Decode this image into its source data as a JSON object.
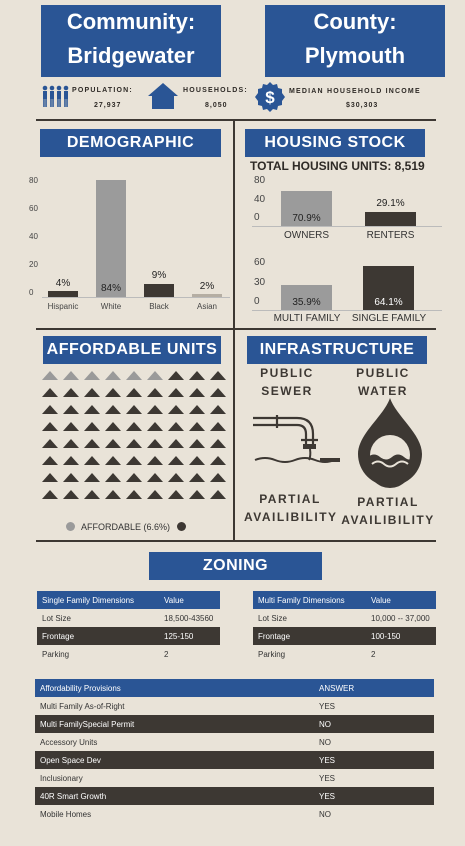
{
  "header": {
    "community_label": "Community:",
    "community_name": "Bridgewater",
    "county_label": "County:",
    "county_name": "Plymouth"
  },
  "stats": {
    "population_label": "POPULATION:",
    "population_value": "27,937",
    "households_label": "HOUSEHOLDS:",
    "households_value": "8,050",
    "income_label": "MEDIAN HOUSEHOLD INCOME",
    "income_value": "$30,303"
  },
  "demographic": {
    "title": "DEMOGRAPHIC",
    "chart_data": {
      "type": "bar",
      "categories": [
        "Hispanic",
        "White",
        "Black",
        "Asian"
      ],
      "values": [
        4,
        84,
        9,
        2
      ],
      "labels": [
        "4%",
        "84%",
        "9%",
        "2%"
      ],
      "yticks": [
        "80",
        "60",
        "40",
        "20",
        "0"
      ],
      "ylim": [
        0,
        90
      ]
    }
  },
  "housing": {
    "title": "HOUSING STOCK",
    "total_label": "TOTAL HOUSING UNITS: 8,519",
    "tenure": {
      "type": "bar",
      "categories": [
        "OWNERS",
        "RENTERS"
      ],
      "values": [
        70.9,
        29.1
      ],
      "labels": [
        "70.9%",
        "29.1%"
      ],
      "yticks": [
        "80",
        "40",
        "0"
      ],
      "ylim": [
        0,
        80
      ]
    },
    "structure": {
      "type": "bar",
      "categories": [
        "MULTI FAMILY",
        "SINGLE FAMILY"
      ],
      "values": [
        35.9,
        64.1
      ],
      "labels": [
        "35.9%",
        "64.1%"
      ],
      "yticks": [
        "60",
        "30",
        "0"
      ],
      "ylim": [
        0,
        65
      ]
    }
  },
  "affordable": {
    "title": "AFFORDABLE UNITS",
    "legend": "AFFORDABLE (6.6%)",
    "affordable_color": "#9a9a9a",
    "other_color": "#3d3833"
  },
  "infrastructure": {
    "title": "INFRASTRUCTURE",
    "sewer_line1": "PUBLIC",
    "sewer_line2": "SEWER",
    "water_line1": "PUBLIC",
    "water_line2": "WATER",
    "sewer_status1": "PARTIAL",
    "sewer_status2": "AVAILIBILITY",
    "water_status1": "PARTIAL",
    "water_status2": "AVAILIBILITY"
  },
  "zoning": {
    "title": "ZONING",
    "single": {
      "headers": [
        "Single Family Dimensions",
        "Value"
      ],
      "rows": [
        [
          "Lot Size",
          "18,500-43560"
        ],
        [
          "Frontage",
          "125-150"
        ],
        [
          "Parking",
          "2"
        ]
      ]
    },
    "multi": {
      "headers": [
        "Multi Family Dimensions",
        "Value"
      ],
      "rows": [
        [
          "Lot Size",
          "10,000 -- 37,000"
        ],
        [
          "Frontage",
          "100-150"
        ],
        [
          "Parking",
          "2"
        ]
      ]
    },
    "provisions": {
      "headers": [
        "Affordability Provisions",
        "ANSWER"
      ],
      "rows": [
        [
          "Multi Family As-of-Right",
          "YES"
        ],
        [
          "Multi FamilySpecial Permit",
          "NO"
        ],
        [
          "Accessory Units",
          "NO"
        ],
        [
          "Open Space Dev",
          "YES"
        ],
        [
          "Inclusionary",
          "YES"
        ],
        [
          "40R Smart Growth",
          "YES"
        ],
        [
          "Mobile Homes",
          "NO"
        ]
      ]
    }
  }
}
